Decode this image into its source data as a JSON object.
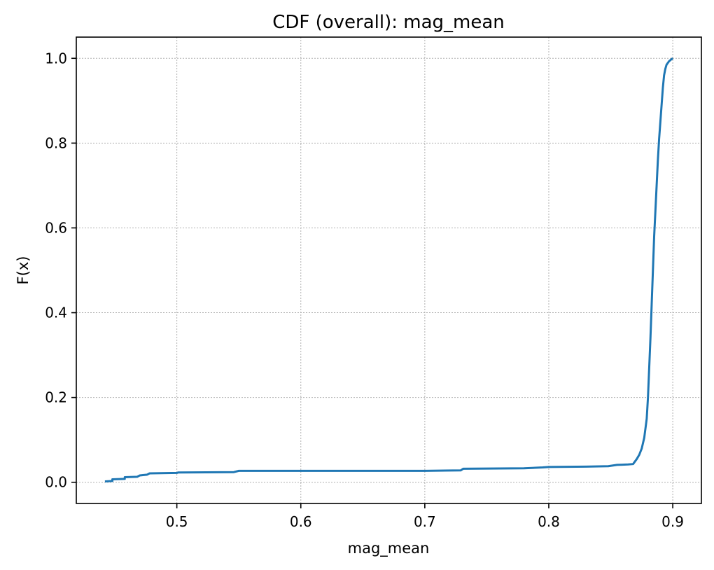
{
  "chart_data": {
    "type": "line",
    "title": "CDF (overall): mag_mean",
    "xlabel": "mag_mean",
    "ylabel": "F(x)",
    "xlim": [
      0.4189,
      0.9231
    ],
    "ylim": [
      -0.05,
      1.05
    ],
    "xticks": [
      0.5,
      0.6,
      0.7,
      0.8,
      0.9
    ],
    "xtick_labels": [
      "0.5",
      "0.6",
      "0.7",
      "0.8",
      "0.9"
    ],
    "yticks": [
      0.0,
      0.2,
      0.4,
      0.6,
      0.8,
      1.0
    ],
    "ytick_labels": [
      "0.0",
      "0.2",
      "0.4",
      "0.6",
      "0.8",
      "1.0"
    ],
    "grid": true,
    "series": [
      {
        "color": "#1f77b4",
        "x": [
          0.442,
          0.448,
          0.448,
          0.458,
          0.458,
          0.468,
          0.47,
          0.476,
          0.478,
          0.5,
          0.501,
          0.546,
          0.55,
          0.56,
          0.6,
          0.7,
          0.729,
          0.731,
          0.78,
          0.795,
          0.8,
          0.83,
          0.848,
          0.855,
          0.864,
          0.868,
          0.871,
          0.873,
          0.875,
          0.877,
          0.879,
          0.88,
          0.881,
          0.882,
          0.883,
          0.884,
          0.885,
          0.886,
          0.887,
          0.888,
          0.889,
          0.89,
          0.891,
          0.892,
          0.893,
          0.894,
          0.895,
          0.897,
          0.899,
          0.9
        ],
        "y": [
          0.002,
          0.003,
          0.007,
          0.008,
          0.012,
          0.013,
          0.016,
          0.018,
          0.021,
          0.022,
          0.023,
          0.024,
          0.027,
          0.027,
          0.027,
          0.027,
          0.028,
          0.032,
          0.033,
          0.035,
          0.036,
          0.037,
          0.038,
          0.041,
          0.042,
          0.043,
          0.055,
          0.065,
          0.08,
          0.105,
          0.15,
          0.2,
          0.27,
          0.34,
          0.42,
          0.5,
          0.58,
          0.64,
          0.7,
          0.76,
          0.81,
          0.85,
          0.89,
          0.93,
          0.96,
          0.975,
          0.985,
          0.993,
          0.998,
          1.0
        ]
      }
    ]
  }
}
